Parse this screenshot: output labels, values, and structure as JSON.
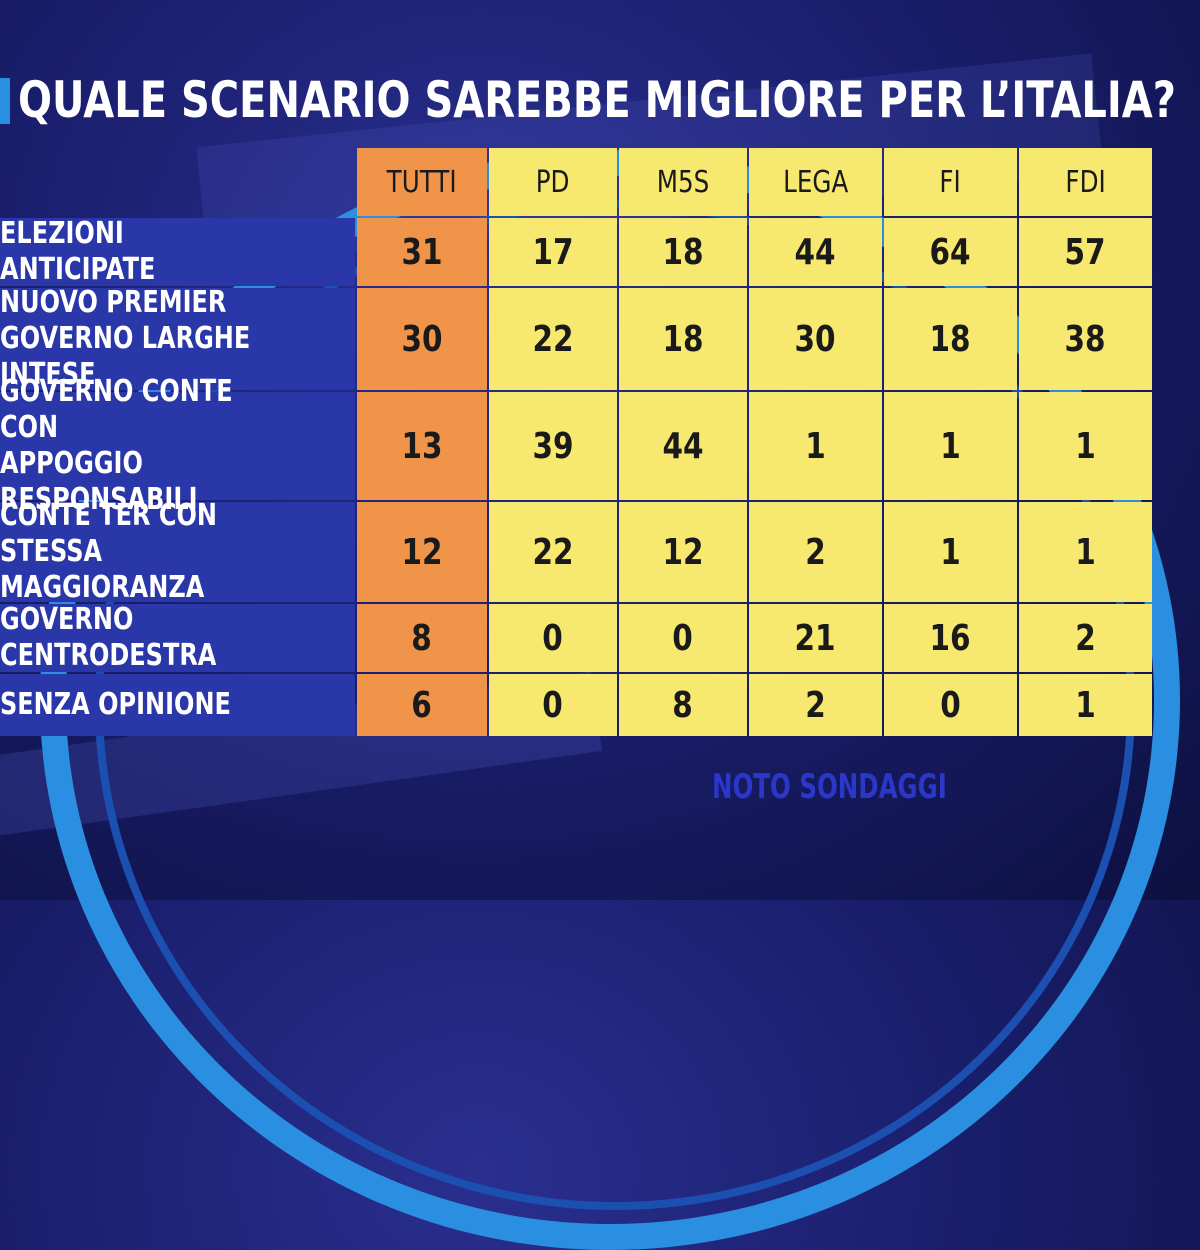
{
  "chart_data": {
    "type": "table",
    "title": "QUALE SCENARIO SAREBBE MIGLIORE PER L’ITALIA?",
    "columns": [
      "TUTTI",
      "PD",
      "M5S",
      "LEGA",
      "FI",
      "FDI"
    ],
    "rows": [
      {
        "label": "ELEZIONI ANTICIPATE",
        "values": [
          "31",
          "17",
          "18",
          "44",
          "64",
          "57"
        ]
      },
      {
        "label": "NUOVO PREMIER\nGOVERNO LARGHE INTESE",
        "values": [
          "30",
          "22",
          "18",
          "30",
          "18",
          "38"
        ]
      },
      {
        "label": "GOVERNO CONTE CON\nAPPOGGIO RESPONSABILI",
        "values": [
          "13",
          "39",
          "44",
          "1",
          "1",
          "1"
        ]
      },
      {
        "label": "CONTE TER CON STESSA\nMAGGIORANZA",
        "values": [
          "12",
          "22",
          "12",
          "2",
          "1",
          "1"
        ]
      },
      {
        "label": "GOVERNO CENTRODESTRA",
        "values": [
          "8",
          "0",
          "0",
          "21",
          "16",
          "2"
        ]
      },
      {
        "label": "SENZA OPINIONE",
        "values": [
          "6",
          "0",
          "8",
          "2",
          "0",
          "1"
        ]
      }
    ],
    "source": "NOTO SONDAGGI"
  },
  "colors": {
    "tutti_fill": "#f0944a",
    "party_fill": "#f7e870",
    "row_label_fill": "#2a37a8",
    "title_text": "#ffffff"
  }
}
